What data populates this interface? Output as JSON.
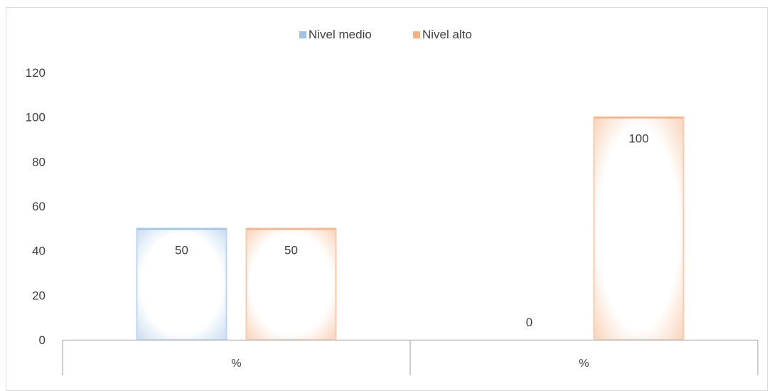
{
  "chart_data": {
    "type": "bar",
    "categories": [
      "%",
      "%"
    ],
    "series": [
      {
        "name": "Nivel medio",
        "values": [
          50,
          0
        ],
        "color": "#9dc3e6"
      },
      {
        "name": "Nivel alto",
        "values": [
          50,
          100
        ],
        "color": "#f4b183"
      }
    ],
    "data_labels": [
      [
        "50",
        "0"
      ],
      [
        "50",
        "100"
      ]
    ],
    "yticks": [
      "0",
      "20",
      "40",
      "60",
      "80",
      "100",
      "120"
    ],
    "ylim": [
      0,
      120
    ],
    "title": "",
    "xlabel": "",
    "ylabel": "",
    "legend_position": "top-center",
    "grid": false
  }
}
